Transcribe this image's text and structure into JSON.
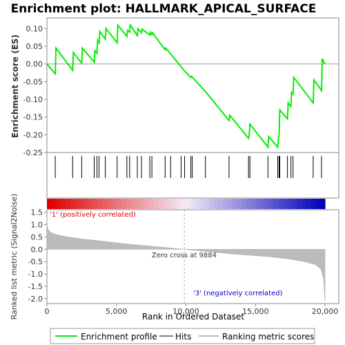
{
  "chart_data": {
    "type": "line",
    "title": "Enrichment plot: HALLMARK_APICAL_SURFACE",
    "top_panel": {
      "ylabel": "Enrichment score (ES)",
      "ylim": [
        -0.25,
        0.13
      ],
      "yticks": [
        0.1,
        0.05,
        0.0,
        -0.05,
        -0.1,
        -0.15,
        -0.2,
        -0.25
      ],
      "ytick_labels": [
        "0.10",
        "0.05",
        "0.00",
        "-0.05",
        "-0.10",
        "-0.15",
        "-0.20",
        "-0.25"
      ],
      "series": [
        {
          "name": "Enrichment profile",
          "color": "#00ee00",
          "x": [
            0,
            600,
            650,
            1850,
            1900,
            2500,
            2550,
            3400,
            3450,
            3600,
            3650,
            3750,
            3800,
            4200,
            4250,
            5050,
            5100,
            5750,
            5800,
            5950,
            6000,
            6500,
            6550,
            6800,
            6850,
            7400,
            7450,
            7550,
            7600,
            8500,
            8550,
            9900,
            10350,
            10400,
            11400,
            11450,
            13100,
            13150,
            14500,
            14550,
            14600,
            15900,
            15950,
            16600,
            16650,
            16700,
            16750,
            17300,
            17350,
            17550,
            17600,
            17700,
            17750,
            19150,
            19200,
            19750,
            19800,
            20000
          ],
          "y": [
            0.0,
            -0.028,
            0.045,
            -0.018,
            0.032,
            0.002,
            0.045,
            0.005,
            0.037,
            0.03,
            0.067,
            0.06,
            0.092,
            0.07,
            0.1,
            0.06,
            0.11,
            0.078,
            0.095,
            0.09,
            0.11,
            0.08,
            0.1,
            0.088,
            0.098,
            0.082,
            0.09,
            0.083,
            0.088,
            0.04,
            0.045,
            -0.02,
            -0.038,
            -0.035,
            -0.078,
            -0.08,
            -0.16,
            -0.145,
            -0.21,
            -0.2,
            -0.17,
            -0.235,
            -0.205,
            -0.235,
            -0.21,
            -0.2,
            -0.13,
            -0.155,
            -0.11,
            -0.12,
            -0.08,
            -0.085,
            -0.038,
            -0.11,
            -0.045,
            -0.075,
            0.015,
            0.0
          ]
        }
      ]
    },
    "hits": [
      600,
      1850,
      2500,
      3400,
      3600,
      3750,
      4200,
      5050,
      5750,
      5950,
      6500,
      6800,
      7400,
      7550,
      8500,
      8900,
      9650,
      9900,
      10350,
      10450,
      11400,
      13100,
      14500,
      14600,
      15900,
      16600,
      16700,
      16750,
      17300,
      17550,
      17700,
      19150,
      19750
    ],
    "hits_label": "Hits",
    "bottom_panel": {
      "ylabel": "Ranked list metric (Signal2Noise)",
      "xlabel": "Rank in Ordered Dataset",
      "ylim": [
        -2.2,
        1.6
      ],
      "yticks": [
        1.5,
        1.0,
        0.5,
        0.0,
        -0.5,
        -1.0,
        -1.5,
        -2.0
      ],
      "ytick_labels": [
        "1.5",
        "1.0",
        "0.5",
        "0.0",
        "-0.5",
        "-1.0",
        "-1.5",
        "-2.0"
      ],
      "xlim": [
        0,
        20000
      ],
      "xticks": [
        0,
        5000,
        10000,
        15000,
        20000
      ],
      "xtick_labels": [
        "0",
        "5,000",
        "10,000",
        "15,000",
        "20,000"
      ],
      "metric_curve": {
        "name": "Ranking metric scores",
        "color": "#bbbbbb",
        "x": [
          0,
          30,
          100,
          200,
          400,
          800,
          1500,
          2500,
          4000,
          6000,
          8000,
          9884,
          12000,
          14000,
          16000,
          17500,
          18500,
          19300,
          19700,
          19900,
          19970,
          20000
        ],
        "y": [
          1.3,
          0.9,
          0.8,
          0.72,
          0.65,
          0.58,
          0.5,
          0.42,
          0.33,
          0.2,
          0.1,
          0.0,
          -0.12,
          -0.22,
          -0.3,
          -0.4,
          -0.5,
          -0.62,
          -0.8,
          -1.2,
          -1.9,
          -2.1
        ]
      },
      "zero_cross_label": "Zero cross at 9884",
      "zero_cross": 9884,
      "positive_label": "'1' (positively correlated)",
      "negative_label": "'3' (negatively correlated)",
      "positive_color": "#dd0000",
      "negative_color": "#0000bb"
    },
    "legend": {
      "placement": "bottom",
      "items": [
        {
          "label": "Enrichment profile",
          "color": "#00ee00",
          "kind": "line"
        },
        {
          "label": "Hits",
          "color": "#000000",
          "kind": "line"
        },
        {
          "label": "Ranking metric scores",
          "color": "#bbbbbb",
          "kind": "line"
        }
      ]
    }
  }
}
